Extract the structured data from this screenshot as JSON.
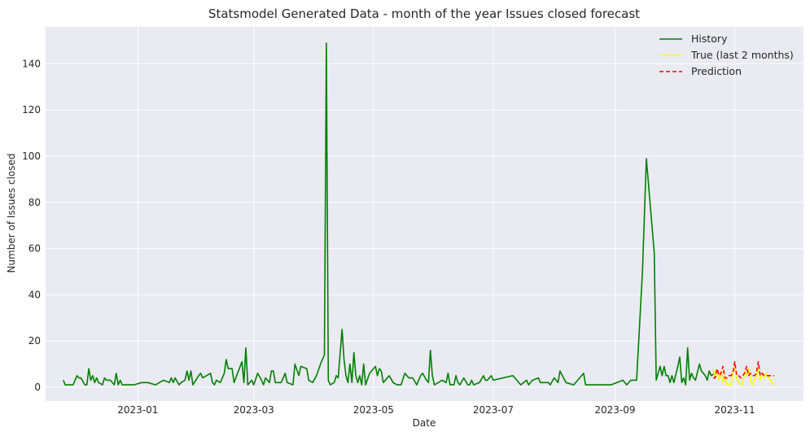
{
  "chart_data": {
    "type": "line",
    "title": "Statsmodel Generated Data - month of the year Issues closed forecast",
    "xlabel": "Date",
    "ylabel": "Number of Issues closed",
    "x_ticks": [
      "2023-01",
      "2023-03",
      "2023-05",
      "2023-07",
      "2023-09",
      "2023-11"
    ],
    "y_ticks": [
      0,
      20,
      40,
      60,
      80,
      100,
      120,
      140
    ],
    "xlim": [
      "2022-11-15",
      "2023-12-06"
    ],
    "ylim": [
      -6,
      156
    ],
    "grid": true,
    "legend_position": "top-right",
    "series": [
      {
        "name": "History",
        "color": "#008000",
        "dash": "solid",
        "points": [
          [
            "2022-11-24",
            3
          ],
          [
            "2022-11-25",
            1
          ],
          [
            "2022-11-29",
            1
          ],
          [
            "2022-12-01",
            5
          ],
          [
            "2022-12-02",
            4
          ],
          [
            "2022-12-03",
            4
          ],
          [
            "2022-12-05",
            1
          ],
          [
            "2022-12-06",
            1
          ],
          [
            "2022-12-07",
            8
          ],
          [
            "2022-12-08",
            3
          ],
          [
            "2022-12-09",
            5
          ],
          [
            "2022-12-10",
            2
          ],
          [
            "2022-12-11",
            4
          ],
          [
            "2022-12-12",
            2
          ],
          [
            "2022-12-14",
            1
          ],
          [
            "2022-12-15",
            4
          ],
          [
            "2022-12-16",
            3
          ],
          [
            "2022-12-18",
            3
          ],
          [
            "2022-12-20",
            1
          ],
          [
            "2022-12-21",
            6
          ],
          [
            "2022-12-22",
            1
          ],
          [
            "2022-12-23",
            3
          ],
          [
            "2022-12-24",
            1
          ],
          [
            "2022-12-30",
            1
          ],
          [
            "2023-01-03",
            2
          ],
          [
            "2023-01-06",
            2
          ],
          [
            "2023-01-10",
            1
          ],
          [
            "2023-01-14",
            3
          ],
          [
            "2023-01-17",
            2
          ],
          [
            "2023-01-18",
            4
          ],
          [
            "2023-01-19",
            2
          ],
          [
            "2023-01-20",
            4
          ],
          [
            "2023-01-22",
            1
          ],
          [
            "2023-01-23",
            2
          ],
          [
            "2023-01-25",
            3
          ],
          [
            "2023-01-26",
            7
          ],
          [
            "2023-01-27",
            3
          ],
          [
            "2023-01-28",
            7
          ],
          [
            "2023-01-29",
            1
          ],
          [
            "2023-02-01",
            5
          ],
          [
            "2023-02-02",
            6
          ],
          [
            "2023-02-03",
            4
          ],
          [
            "2023-02-07",
            6
          ],
          [
            "2023-02-08",
            2
          ],
          [
            "2023-02-09",
            1
          ],
          [
            "2023-02-10",
            3
          ],
          [
            "2023-02-12",
            2
          ],
          [
            "2023-02-14",
            6
          ],
          [
            "2023-02-15",
            12
          ],
          [
            "2023-02-16",
            8
          ],
          [
            "2023-02-18",
            8
          ],
          [
            "2023-02-19",
            2
          ],
          [
            "2023-02-23",
            11
          ],
          [
            "2023-02-24",
            2
          ],
          [
            "2023-02-25",
            17
          ],
          [
            "2023-02-26",
            1
          ],
          [
            "2023-02-27",
            2
          ],
          [
            "2023-02-28",
            3
          ],
          [
            "2023-03-01",
            1
          ],
          [
            "2023-03-03",
            6
          ],
          [
            "2023-03-05",
            3
          ],
          [
            "2023-03-06",
            1
          ],
          [
            "2023-03-07",
            4
          ],
          [
            "2023-03-09",
            2
          ],
          [
            "2023-03-10",
            7
          ],
          [
            "2023-03-11",
            7
          ],
          [
            "2023-03-12",
            2
          ],
          [
            "2023-03-15",
            2
          ],
          [
            "2023-03-17",
            6
          ],
          [
            "2023-03-18",
            2
          ],
          [
            "2023-03-21",
            1
          ],
          [
            "2023-03-22",
            10
          ],
          [
            "2023-03-24",
            5
          ],
          [
            "2023-03-25",
            9
          ],
          [
            "2023-03-28",
            8
          ],
          [
            "2023-03-29",
            3
          ],
          [
            "2023-03-31",
            2
          ],
          [
            "2023-04-02",
            5
          ],
          [
            "2023-04-04",
            10
          ],
          [
            "2023-04-06",
            14
          ],
          [
            "2023-04-07",
            149
          ],
          [
            "2023-04-08",
            3
          ],
          [
            "2023-04-09",
            1
          ],
          [
            "2023-04-11",
            2
          ],
          [
            "2023-04-12",
            5
          ],
          [
            "2023-04-13",
            4
          ],
          [
            "2023-04-15",
            25
          ],
          [
            "2023-04-16",
            12
          ],
          [
            "2023-04-17",
            5
          ],
          [
            "2023-04-18",
            2
          ],
          [
            "2023-04-19",
            10
          ],
          [
            "2023-04-20",
            2
          ],
          [
            "2023-04-21",
            15
          ],
          [
            "2023-04-22",
            5
          ],
          [
            "2023-04-23",
            2
          ],
          [
            "2023-04-24",
            5
          ],
          [
            "2023-04-25",
            1
          ],
          [
            "2023-04-26",
            10
          ],
          [
            "2023-04-27",
            1
          ],
          [
            "2023-04-29",
            6
          ],
          [
            "2023-05-02",
            9
          ],
          [
            "2023-05-03",
            5
          ],
          [
            "2023-05-04",
            8
          ],
          [
            "2023-05-05",
            7
          ],
          [
            "2023-05-06",
            2
          ],
          [
            "2023-05-09",
            5
          ],
          [
            "2023-05-11",
            2
          ],
          [
            "2023-05-13",
            1
          ],
          [
            "2023-05-15",
            1
          ],
          [
            "2023-05-17",
            6
          ],
          [
            "2023-05-19",
            4
          ],
          [
            "2023-05-21",
            4
          ],
          [
            "2023-05-23",
            1
          ],
          [
            "2023-05-25",
            5
          ],
          [
            "2023-05-26",
            6
          ],
          [
            "2023-05-28",
            3
          ],
          [
            "2023-05-29",
            2
          ],
          [
            "2023-05-30",
            16
          ],
          [
            "2023-05-31",
            5
          ],
          [
            "2023-06-01",
            1
          ],
          [
            "2023-06-03",
            2
          ],
          [
            "2023-06-05",
            3
          ],
          [
            "2023-06-07",
            2
          ],
          [
            "2023-06-08",
            6
          ],
          [
            "2023-06-09",
            1
          ],
          [
            "2023-06-11",
            1
          ],
          [
            "2023-06-12",
            5
          ],
          [
            "2023-06-13",
            2
          ],
          [
            "2023-06-14",
            1
          ],
          [
            "2023-06-16",
            4
          ],
          [
            "2023-06-18",
            1
          ],
          [
            "2023-06-19",
            1
          ],
          [
            "2023-06-20",
            3
          ],
          [
            "2023-06-21",
            1
          ],
          [
            "2023-06-24",
            2
          ],
          [
            "2023-06-26",
            5
          ],
          [
            "2023-06-27",
            3
          ],
          [
            "2023-06-28",
            3
          ],
          [
            "2023-06-30",
            5
          ],
          [
            "2023-07-01",
            3
          ],
          [
            "2023-07-11",
            5
          ],
          [
            "2023-07-13",
            3
          ],
          [
            "2023-07-15",
            1
          ],
          [
            "2023-07-18",
            3
          ],
          [
            "2023-07-19",
            1
          ],
          [
            "2023-07-21",
            3
          ],
          [
            "2023-07-24",
            4
          ],
          [
            "2023-07-25",
            2
          ],
          [
            "2023-07-27",
            2
          ],
          [
            "2023-07-29",
            2
          ],
          [
            "2023-07-30",
            1
          ],
          [
            "2023-08-01",
            4
          ],
          [
            "2023-08-03",
            2
          ],
          [
            "2023-08-04",
            7
          ],
          [
            "2023-08-07",
            2
          ],
          [
            "2023-08-11",
            1
          ],
          [
            "2023-08-16",
            6
          ],
          [
            "2023-08-17",
            1
          ],
          [
            "2023-08-30",
            1
          ],
          [
            "2023-09-05",
            3
          ],
          [
            "2023-09-07",
            1
          ],
          [
            "2023-09-09",
            3
          ],
          [
            "2023-09-12",
            3
          ],
          [
            "2023-09-15",
            50
          ],
          [
            "2023-09-17",
            99
          ],
          [
            "2023-09-21",
            58
          ],
          [
            "2023-09-22",
            3
          ],
          [
            "2023-09-24",
            9
          ],
          [
            "2023-09-25",
            5
          ],
          [
            "2023-09-26",
            9
          ],
          [
            "2023-09-27",
            5
          ],
          [
            "2023-09-28",
            5
          ],
          [
            "2023-09-29",
            2
          ],
          [
            "2023-09-30",
            5
          ],
          [
            "2023-10-01",
            2
          ],
          [
            "2023-10-03",
            9
          ],
          [
            "2023-10-04",
            13
          ],
          [
            "2023-10-05",
            2
          ],
          [
            "2023-10-06",
            4
          ],
          [
            "2023-10-07",
            1
          ],
          [
            "2023-10-08",
            17
          ],
          [
            "2023-10-09",
            3
          ],
          [
            "2023-10-10",
            6
          ],
          [
            "2023-10-11",
            4
          ],
          [
            "2023-10-12",
            3
          ],
          [
            "2023-10-14",
            10
          ],
          [
            "2023-10-15",
            7
          ],
          [
            "2023-10-17",
            5
          ],
          [
            "2023-10-18",
            3
          ],
          [
            "2023-10-19",
            7
          ],
          [
            "2023-10-20",
            5
          ],
          [
            "2023-10-22",
            6
          ]
        ]
      },
      {
        "name": "True (last 2 months)",
        "color": "#ffff00",
        "dash": "solid",
        "points": [
          [
            "2023-10-21",
            8
          ],
          [
            "2023-10-22",
            4
          ],
          [
            "2023-10-23",
            7
          ],
          [
            "2023-10-24",
            3
          ],
          [
            "2023-10-25",
            7
          ],
          [
            "2023-10-26",
            2
          ],
          [
            "2023-10-27",
            5
          ],
          [
            "2023-10-28",
            1
          ],
          [
            "2023-10-30",
            1
          ],
          [
            "2023-10-31",
            6
          ],
          [
            "2023-11-01",
            9
          ],
          [
            "2023-11-02",
            4
          ],
          [
            "2023-11-03",
            2
          ],
          [
            "2023-11-05",
            1
          ],
          [
            "2023-11-06",
            7
          ],
          [
            "2023-11-07",
            5
          ],
          [
            "2023-11-08",
            8
          ],
          [
            "2023-11-09",
            3
          ],
          [
            "2023-11-10",
            1
          ],
          [
            "2023-11-12",
            5
          ],
          [
            "2023-11-13",
            8
          ],
          [
            "2023-11-14",
            3
          ],
          [
            "2023-11-15",
            6
          ],
          [
            "2023-11-16",
            4
          ],
          [
            "2023-11-17",
            6
          ],
          [
            "2023-11-19",
            3
          ],
          [
            "2023-11-21",
            1
          ]
        ]
      },
      {
        "name": "Prediction",
        "color": "#ff0000",
        "dash": "dashed",
        "points": [
          [
            "2023-10-21",
            4
          ],
          [
            "2023-10-22",
            4
          ],
          [
            "2023-10-23",
            8
          ],
          [
            "2023-10-24",
            5
          ],
          [
            "2023-10-25",
            6
          ],
          [
            "2023-10-26",
            9
          ],
          [
            "2023-10-27",
            4
          ],
          [
            "2023-10-28",
            4
          ],
          [
            "2023-10-29",
            5
          ],
          [
            "2023-10-30",
            5
          ],
          [
            "2023-10-31",
            6
          ],
          [
            "2023-11-01",
            11
          ],
          [
            "2023-11-02",
            5
          ],
          [
            "2023-11-03",
            5
          ],
          [
            "2023-11-04",
            4
          ],
          [
            "2023-11-05",
            5
          ],
          [
            "2023-11-06",
            6
          ],
          [
            "2023-11-07",
            9
          ],
          [
            "2023-11-08",
            5
          ],
          [
            "2023-11-09",
            6
          ],
          [
            "2023-11-10",
            5
          ],
          [
            "2023-11-11",
            5
          ],
          [
            "2023-11-12",
            6
          ],
          [
            "2023-11-13",
            11
          ],
          [
            "2023-11-14",
            5
          ],
          [
            "2023-11-15",
            6
          ],
          [
            "2023-11-16",
            5
          ],
          [
            "2023-11-17",
            5
          ],
          [
            "2023-11-19",
            5
          ],
          [
            "2023-11-21",
            5
          ]
        ]
      }
    ]
  }
}
